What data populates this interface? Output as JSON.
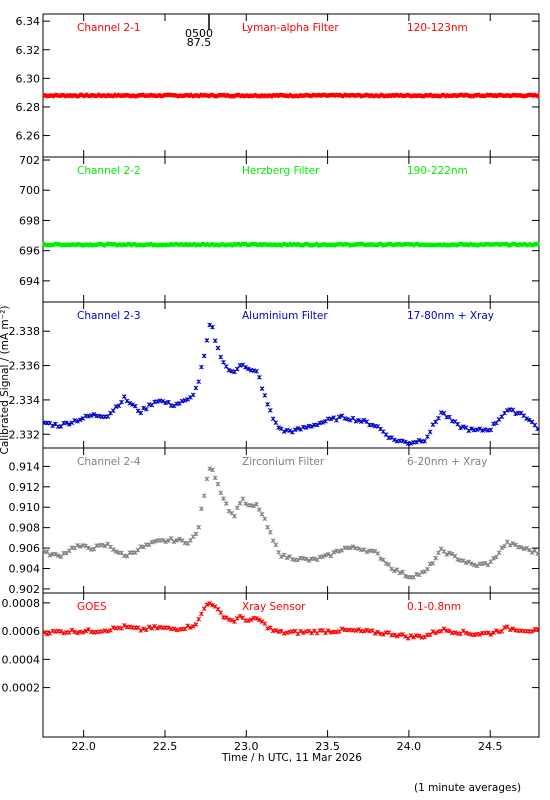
{
  "figure": {
    "xlabel": "Time / h UTC, 11 Mar 2026",
    "ylabel": "Calibrated Signal / (mA m⁻²)",
    "footnote": "(1 minute averages)",
    "marker_top": "0500",
    "marker_bottom": "87.5"
  },
  "chart_data": [
    {
      "type": "scatter",
      "channel": "Channel 2-1",
      "filter": "Lyman-alpha Filter",
      "band": "120-123nm",
      "color": "#ff0000",
      "xlim": [
        21.75,
        24.8
      ],
      "ylim": [
        6.245,
        6.345
      ],
      "yticks": [
        6.26,
        6.28,
        6.3,
        6.32,
        6.34
      ],
      "yticklabels": [
        "6.26",
        "6.28",
        "6.30",
        "6.32",
        "6.34"
      ],
      "series_x": [
        21.75,
        24.8
      ],
      "series_y": [
        6.288,
        6.288
      ]
    },
    {
      "type": "scatter",
      "channel": "Channel 2-2",
      "filter": "Herzberg Filter",
      "band": "190-222nm",
      "color": "#00ee00",
      "xlim": [
        21.75,
        24.8
      ],
      "ylim": [
        692.6,
        702.2
      ],
      "yticks": [
        694,
        696,
        698,
        700,
        702
      ],
      "yticklabels": [
        "694",
        "696",
        "698",
        "700",
        "702"
      ],
      "series_x": [
        21.75,
        24.8
      ],
      "series_y": [
        696.4,
        696.4
      ]
    },
    {
      "type": "scatter",
      "channel": "Channel 2-3",
      "filter": "Aluminium Filter",
      "band": "17-80nm + Xray",
      "color": "#0000cc",
      "xlim": [
        21.75,
        24.8
      ],
      "ylim": [
        2.3312,
        2.3397
      ],
      "yticks": [
        2.332,
        2.334,
        2.336,
        2.338
      ],
      "yticklabels": [
        "2.332",
        "2.334",
        "2.336",
        "2.338"
      ],
      "series_x": [
        21.75,
        21.85,
        21.95,
        22.05,
        22.15,
        22.25,
        22.35,
        22.45,
        22.55,
        22.65,
        22.7,
        22.75,
        22.78,
        22.82,
        22.87,
        22.92,
        22.97,
        23.02,
        23.07,
        23.12,
        23.17,
        23.22,
        23.3,
        23.4,
        23.5,
        23.6,
        23.7,
        23.8,
        23.9,
        24.0,
        24.1,
        24.2,
        24.3,
        24.4,
        24.5,
        24.6,
        24.7,
        24.8
      ],
      "series_y": [
        2.3327,
        2.3325,
        2.3328,
        2.3331,
        2.3331,
        2.3341,
        2.3333,
        2.334,
        2.3337,
        2.334,
        2.3348,
        2.3369,
        2.3386,
        2.3371,
        2.336,
        2.3355,
        2.3362,
        2.3357,
        2.3356,
        2.334,
        2.3328,
        2.3322,
        2.3322,
        2.3325,
        2.3328,
        2.333,
        2.3328,
        2.3325,
        2.3317,
        2.3315,
        2.3317,
        2.3333,
        2.3325,
        2.3322,
        2.3323,
        2.3334,
        2.3332,
        2.3323
      ]
    },
    {
      "type": "scatter",
      "channel": "Channel 2-4",
      "filter": "Zirconium Filter",
      "band": "6-20nm + Xray",
      "color": "#808080",
      "xlim": [
        21.75,
        24.8
      ],
      "ylim": [
        0.9016,
        0.9158
      ],
      "yticks": [
        0.902,
        0.904,
        0.906,
        0.908,
        0.91,
        0.912,
        0.914
      ],
      "yticklabels": [
        "0.902",
        "0.904",
        "0.906",
        "0.908",
        "0.910",
        "0.912",
        "0.914"
      ],
      "series_x": [
        21.75,
        21.85,
        21.95,
        22.05,
        22.15,
        22.25,
        22.35,
        22.45,
        22.55,
        22.65,
        22.7,
        22.75,
        22.78,
        22.82,
        22.87,
        22.92,
        22.97,
        23.02,
        23.07,
        23.12,
        23.17,
        23.22,
        23.3,
        23.4,
        23.5,
        23.6,
        23.7,
        23.8,
        23.9,
        24.0,
        24.1,
        24.2,
        24.3,
        24.4,
        24.5,
        24.6,
        24.7,
        24.8
      ],
      "series_y": [
        0.9056,
        0.9052,
        0.9062,
        0.906,
        0.9063,
        0.9052,
        0.906,
        0.9066,
        0.9068,
        0.9066,
        0.9075,
        0.912,
        0.9143,
        0.9125,
        0.9105,
        0.909,
        0.9108,
        0.91,
        0.9102,
        0.9085,
        0.9065,
        0.9052,
        0.905,
        0.9048,
        0.9052,
        0.906,
        0.906,
        0.9055,
        0.904,
        0.9032,
        0.9036,
        0.9058,
        0.905,
        0.9043,
        0.9045,
        0.9065,
        0.906,
        0.9055
      ]
    },
    {
      "type": "scatter",
      "channel": "GOES",
      "filter": "Xray Sensor",
      "band": "0.1-0.8nm",
      "color": "#ff0000",
      "xlim": [
        21.75,
        24.8
      ],
      "ylim": [
        -0.00015,
        0.00087
      ],
      "yticks": [
        0.0002,
        0.0004,
        0.0006,
        0.0008
      ],
      "yticklabels": [
        "0.0002",
        "0.0004",
        "0.0006",
        "0.0008"
      ],
      "series_x": [
        21.75,
        21.85,
        21.95,
        22.05,
        22.15,
        22.25,
        22.35,
        22.45,
        22.55,
        22.65,
        22.7,
        22.75,
        22.78,
        22.82,
        22.87,
        22.92,
        22.97,
        23.02,
        23.07,
        23.12,
        23.17,
        23.22,
        23.3,
        23.4,
        23.5,
        23.6,
        23.7,
        23.8,
        23.9,
        24.0,
        24.1,
        24.2,
        24.3,
        24.4,
        24.5,
        24.6,
        24.7,
        24.8
      ],
      "series_y": [
        0.00059,
        0.000595,
        0.0006,
        0.0006,
        0.00061,
        0.00063,
        0.00061,
        0.000625,
        0.000615,
        0.00063,
        0.00066,
        0.00078,
        0.00081,
        0.00075,
        0.0007,
        0.00067,
        0.0007,
        0.00067,
        0.00069,
        0.00064,
        0.0006,
        0.00059,
        0.00059,
        0.000595,
        0.0006,
        0.000605,
        0.0006,
        0.00059,
        0.00058,
        0.00056,
        0.000565,
        0.00061,
        0.000595,
        0.00058,
        0.000585,
        0.00062,
        0.00061,
        0.0006
      ]
    }
  ],
  "xaxis": {
    "ticks": [
      22.0,
      22.5,
      23.0,
      23.5,
      24.0,
      24.5
    ],
    "ticklabels": [
      "22.0",
      "22.5",
      "23.0",
      "23.5",
      "24.0",
      "24.5"
    ]
  }
}
